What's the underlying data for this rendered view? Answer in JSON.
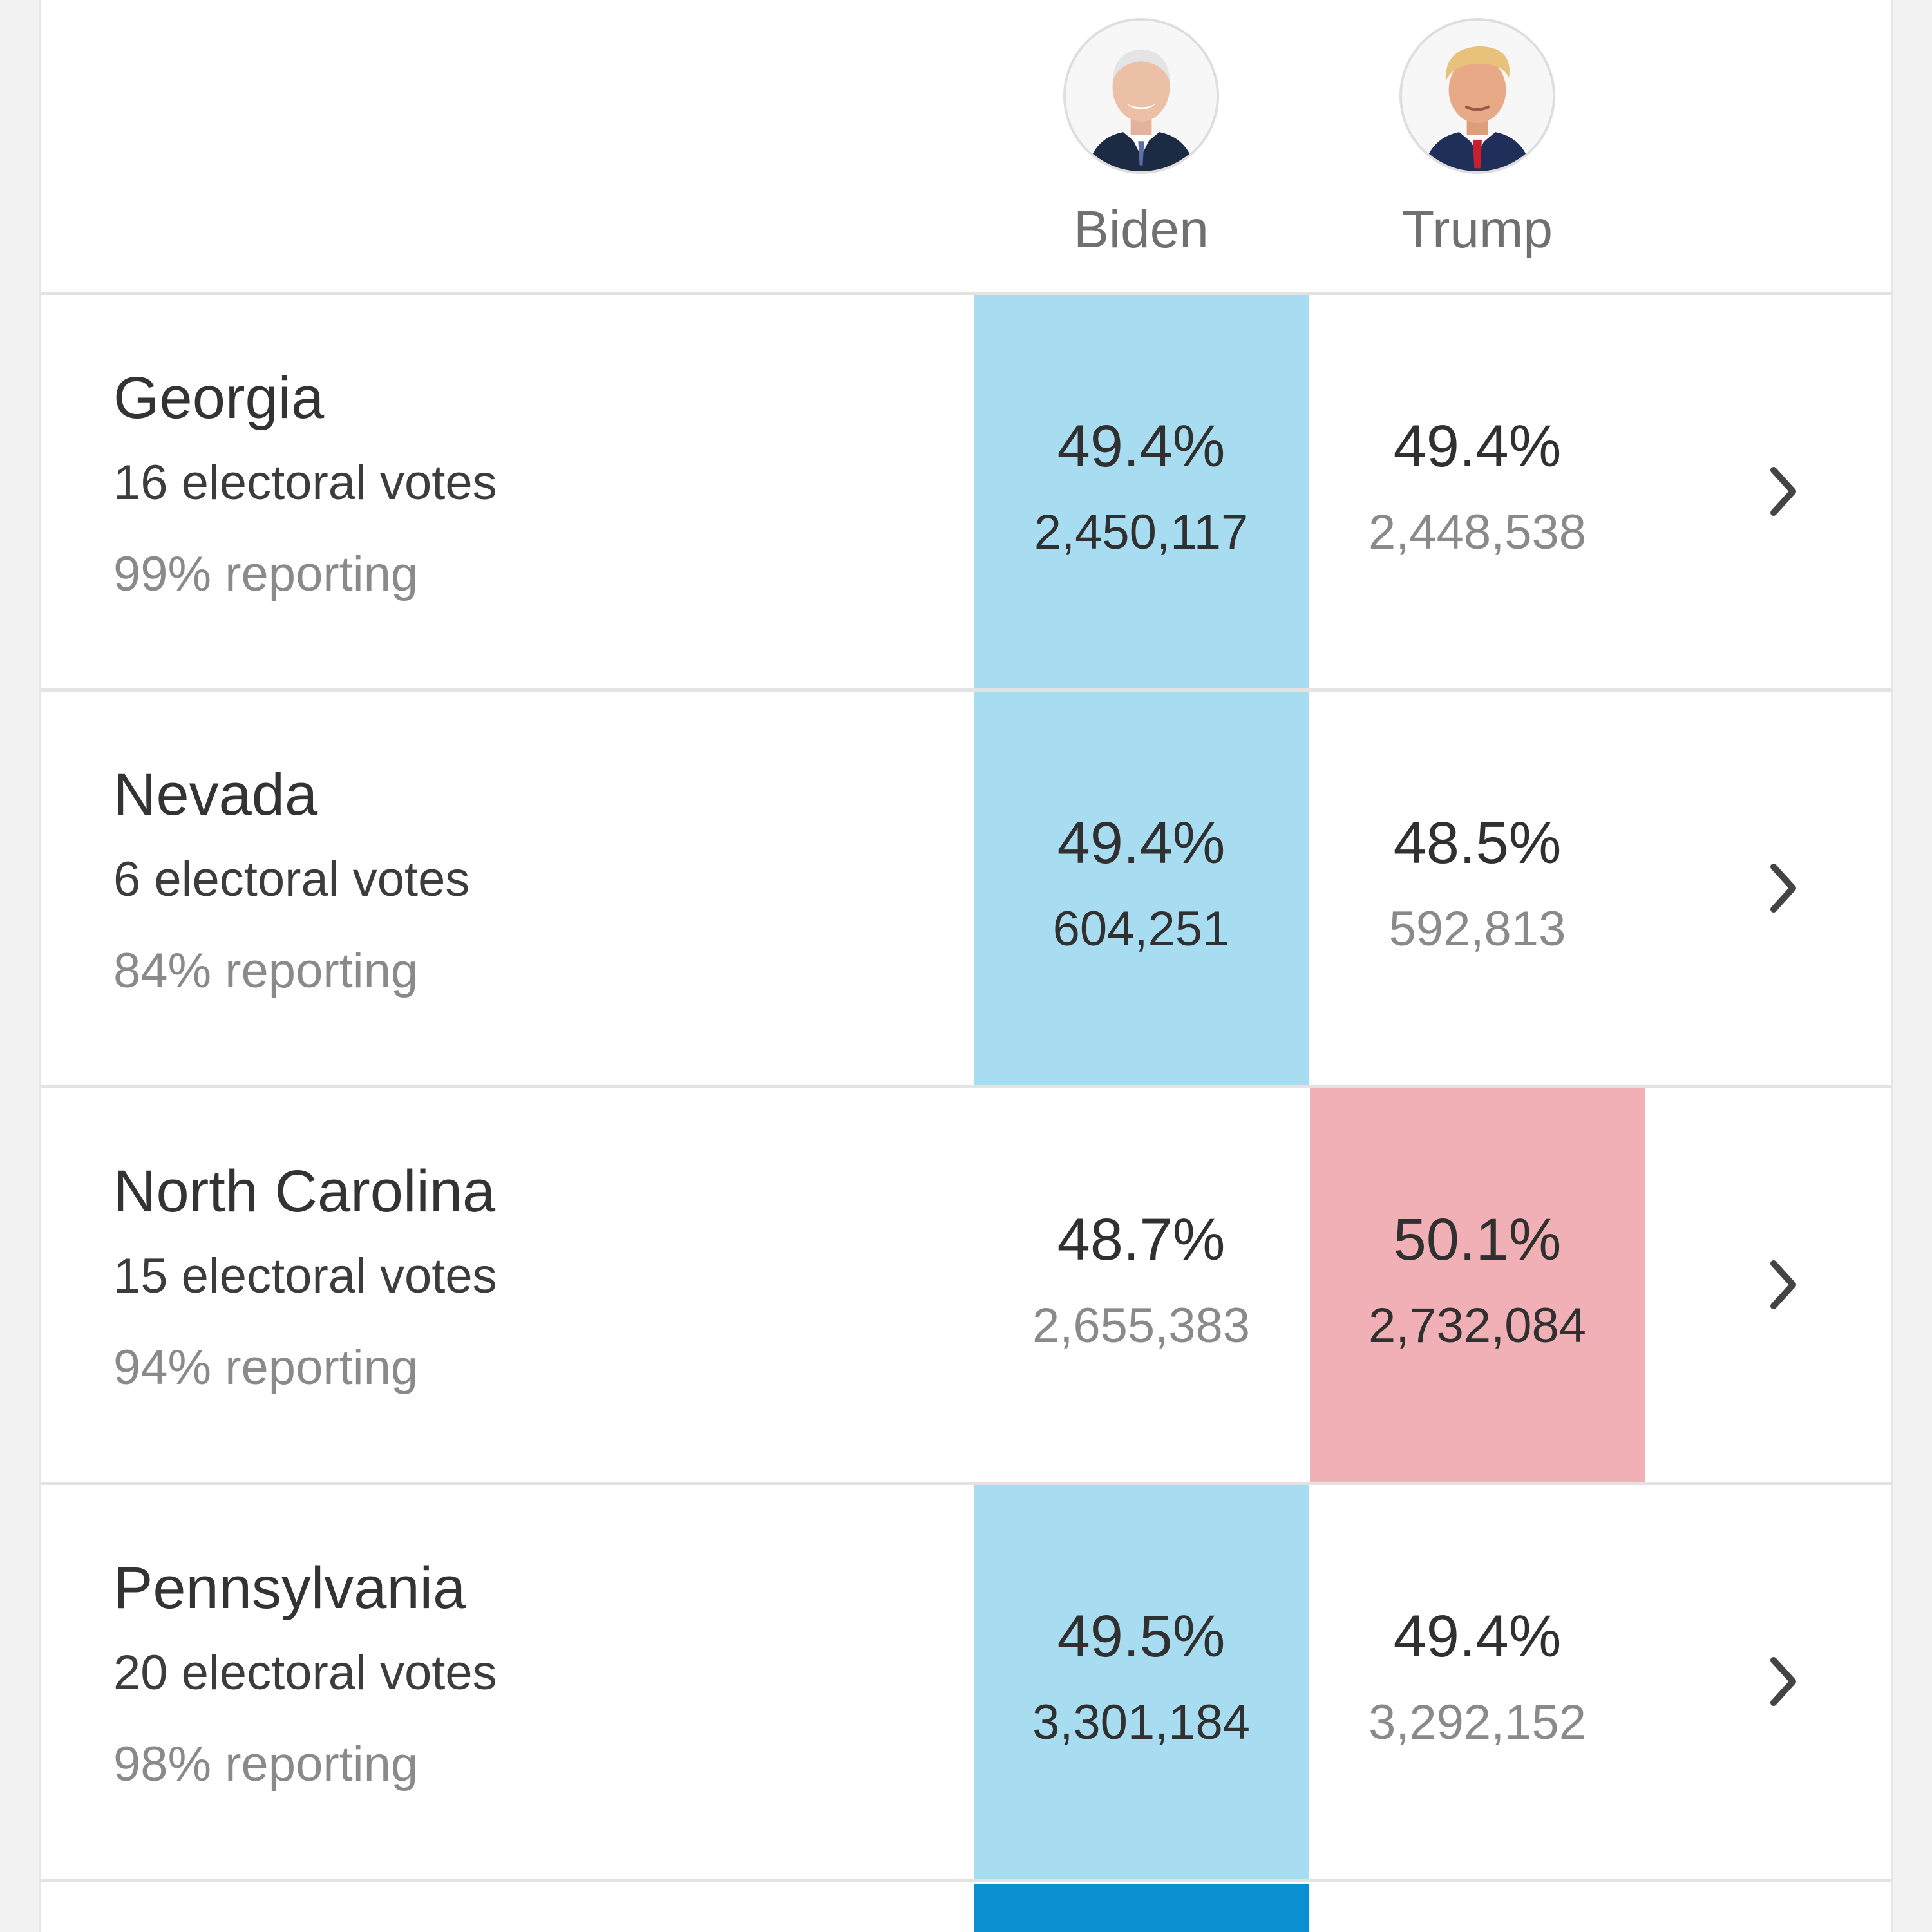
{
  "candidates": [
    {
      "name": "Biden",
      "party_color": "#a8dcf0"
    },
    {
      "name": "Trump",
      "party_color": "#f0b0b6"
    }
  ],
  "rows": [
    {
      "state": "Georgia",
      "electoral_votes": "16 electoral votes",
      "reporting": "99% reporting",
      "biden": {
        "pct": "49.4%",
        "votes": "2,450,117"
      },
      "trump": {
        "pct": "49.4%",
        "votes": "2,448,538"
      },
      "leader": "biden"
    },
    {
      "state": "Nevada",
      "electoral_votes": "6 electoral votes",
      "reporting": "84% reporting",
      "biden": {
        "pct": "49.4%",
        "votes": "604,251"
      },
      "trump": {
        "pct": "48.5%",
        "votes": "592,813"
      },
      "leader": "biden"
    },
    {
      "state": "North Carolina",
      "electoral_votes": "15 electoral votes",
      "reporting": "94% reporting",
      "biden": {
        "pct": "48.7%",
        "votes": "2,655,383"
      },
      "trump": {
        "pct": "50.1%",
        "votes": "2,732,084"
      },
      "leader": "trump"
    },
    {
      "state": "Pennsylvania",
      "electoral_votes": "20 electoral votes",
      "reporting": "98% reporting",
      "biden": {
        "pct": "49.5%",
        "votes": "3,301,184"
      },
      "trump": {
        "pct": "49.4%",
        "votes": "3,292,152"
      },
      "leader": "biden"
    }
  ],
  "icons": {
    "row_action": "chevron-right-icon",
    "biden_photo": "biden-avatar",
    "trump_photo": "trump-avatar"
  }
}
